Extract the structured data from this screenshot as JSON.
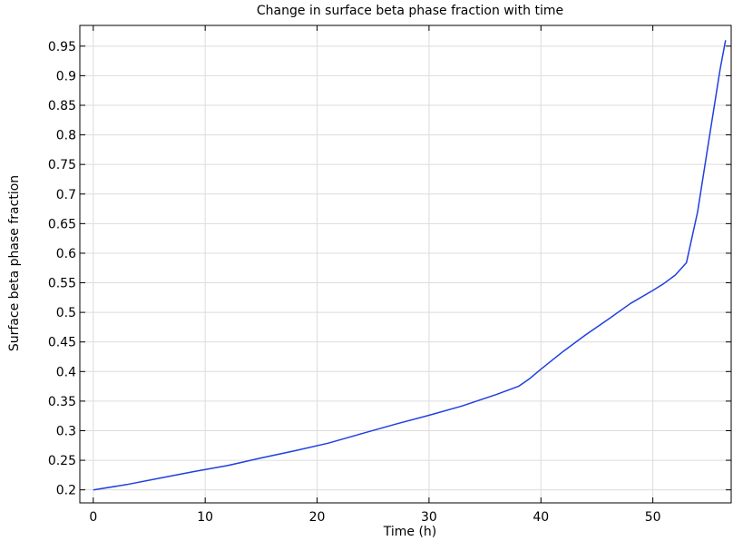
{
  "chart_data": {
    "type": "line",
    "title": "Change in surface beta phase fraction with time",
    "xlabel": "Time (h)",
    "ylabel": "Surface beta phase fraction",
    "xlim": [
      -1.2,
      57
    ],
    "ylim": [
      0.178,
      0.985
    ],
    "xticks": [
      0,
      10,
      20,
      30,
      40,
      50
    ],
    "xtick_labels": [
      "0",
      "10",
      "20",
      "30",
      "40",
      "50"
    ],
    "yticks": [
      0.2,
      0.25,
      0.3,
      0.35,
      0.4,
      0.45,
      0.5,
      0.55,
      0.6,
      0.65,
      0.7,
      0.75,
      0.8,
      0.85,
      0.9,
      0.95
    ],
    "ytick_labels": [
      "0.2",
      "0.25",
      "0.3",
      "0.35",
      "0.4",
      "0.45",
      "0.5",
      "0.55",
      "0.6",
      "0.65",
      "0.7",
      "0.75",
      "0.8",
      "0.85",
      "0.9",
      "0.95"
    ],
    "grid": true,
    "series": [
      {
        "color": "#1f3fe0",
        "x": [
          0,
          3,
          6,
          9,
          12,
          15,
          18,
          21,
          24,
          27,
          30,
          33,
          36,
          38,
          39,
          40,
          42,
          44,
          46,
          48,
          50,
          51,
          52,
          53,
          54,
          55,
          56,
          56.5
        ],
        "y": [
          0.2,
          0.209,
          0.22,
          0.231,
          0.241,
          0.254,
          0.266,
          0.279,
          0.295,
          0.311,
          0.326,
          0.342,
          0.361,
          0.375,
          0.388,
          0.404,
          0.434,
          0.462,
          0.488,
          0.515,
          0.537,
          0.549,
          0.563,
          0.584,
          0.67,
          0.79,
          0.91,
          0.96
        ]
      }
    ]
  }
}
